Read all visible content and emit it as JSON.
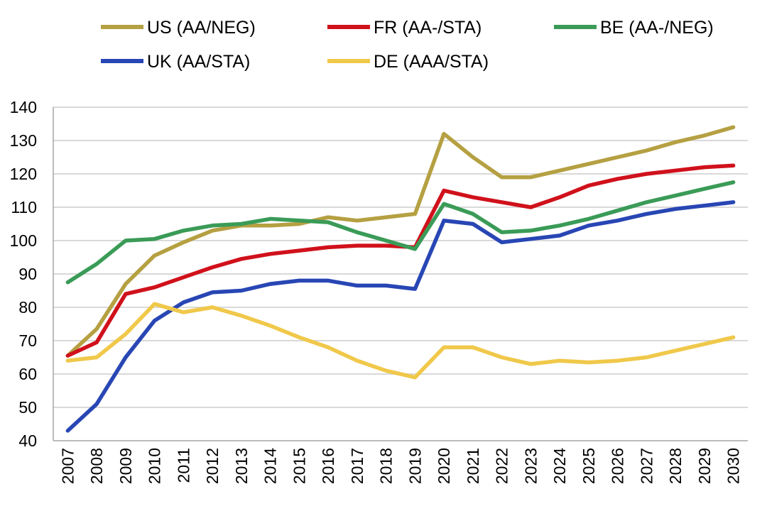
{
  "chart_data": {
    "type": "line",
    "title": "",
    "xlabel": "",
    "ylabel": "",
    "ylim": [
      40,
      140
    ],
    "yticks": [
      40,
      50,
      60,
      70,
      80,
      90,
      100,
      110,
      120,
      130,
      140
    ],
    "grid": true,
    "legend_position": "top",
    "x": [
      "2007",
      "2008",
      "2009",
      "2010",
      "2011",
      "2012",
      "2013",
      "2014",
      "2015",
      "2016",
      "2017",
      "2018",
      "2019",
      "2020",
      "2021",
      "2022",
      "2023",
      "2024",
      "2025",
      "2026",
      "2027",
      "2028",
      "2029",
      "2030"
    ],
    "series": [
      {
        "name": "US (AA/NEG)",
        "color": "#b5a042",
        "values": [
          65.5,
          73.5,
          87,
          95.5,
          99.5,
          103,
          104.5,
          104.5,
          105,
          107,
          106,
          107,
          108,
          132,
          125,
          119,
          119,
          121,
          123,
          125,
          127,
          129.5,
          131.5,
          134
        ]
      },
      {
        "name": "FR (AA-/STA)",
        "color": "#d0111b",
        "values": [
          65.5,
          69.5,
          84,
          86,
          89,
          92,
          94.5,
          96,
          97,
          98,
          98.5,
          98.5,
          98,
          115,
          113,
          111.5,
          110,
          113,
          116.5,
          118.5,
          120,
          121,
          122,
          122.5
        ]
      },
      {
        "name": "BE (AA-/NEG)",
        "color": "#3a9b57",
        "values": [
          87.5,
          93,
          100,
          100.5,
          103,
          104.5,
          105,
          106.5,
          106,
          105.5,
          102.5,
          100,
          97.5,
          111,
          108,
          102.5,
          103,
          104.5,
          106.5,
          109,
          111.5,
          113.5,
          115.5,
          117.5
        ]
      },
      {
        "name": "UK (AA/STA)",
        "color": "#2846b4",
        "values": [
          43,
          51,
          65,
          76,
          81.5,
          84.5,
          85,
          87,
          88,
          88,
          86.5,
          86.5,
          85.5,
          106,
          105,
          99.5,
          100.5,
          101.5,
          104.5,
          106,
          108,
          109.5,
          110.5,
          111.5
        ]
      },
      {
        "name": "DE (AAA/STA)",
        "color": "#f0c84a",
        "values": [
          64,
          65,
          72,
          81,
          78.5,
          80,
          77.5,
          74.5,
          71,
          68,
          64,
          61,
          59,
          68,
          68,
          65,
          63,
          64,
          63.5,
          64,
          65,
          67,
          69,
          71
        ]
      }
    ]
  }
}
